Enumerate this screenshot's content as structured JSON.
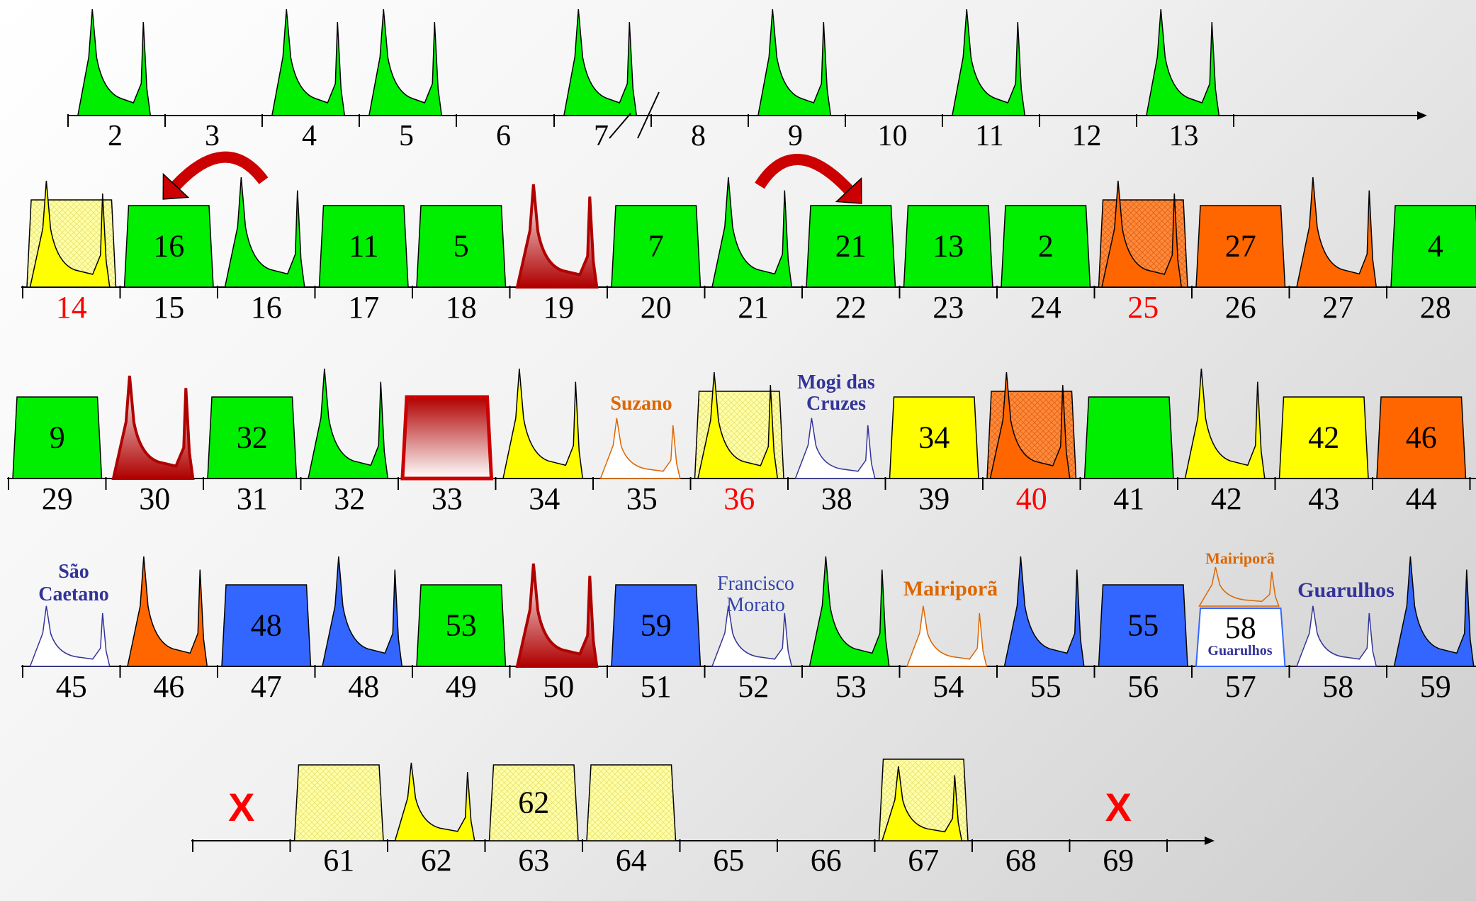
{
  "colors": {
    "green": "#00ee00",
    "yellow": "#ffff00",
    "orange": "#ff6600",
    "blue": "#3366ff",
    "darkred": "#cc0000",
    "crosshatch_yellow": "#ffffaa",
    "label_red": "#ff0000",
    "suzano": "#dd6600",
    "mogi": "#333399"
  },
  "row1": {
    "labels": [
      "2",
      "3",
      "4",
      "5",
      "6",
      "7",
      "8",
      "9",
      "10",
      "11",
      "12",
      "13"
    ],
    "peaks": [
      "green",
      "none",
      "green",
      "green",
      "none",
      "green",
      "none",
      "green",
      "none",
      "green",
      "none",
      "green"
    ],
    "break_mark": "//"
  },
  "row2": {
    "labels": [
      "14",
      "15",
      "16",
      "17",
      "18",
      "19",
      "20",
      "21",
      "22",
      "23",
      "24",
      "25",
      "26",
      "27",
      "28"
    ],
    "label_colors": [
      "red",
      "",
      "",
      "",
      "",
      "",
      "",
      "",
      "",
      "",
      "",
      "red",
      "",
      "",
      ""
    ],
    "cells": [
      {
        "kind": "peak-with-box",
        "color": "yellow"
      },
      {
        "kind": "box",
        "color": "green",
        "text": "16"
      },
      {
        "kind": "peak",
        "color": "green"
      },
      {
        "kind": "box",
        "color": "green",
        "text": "11"
      },
      {
        "kind": "box",
        "color": "green",
        "text": "5"
      },
      {
        "kind": "peak-gradient",
        "color": "darkred"
      },
      {
        "kind": "box",
        "color": "green",
        "text": "7"
      },
      {
        "kind": "peak",
        "color": "green"
      },
      {
        "kind": "box",
        "color": "green",
        "text": "21"
      },
      {
        "kind": "box",
        "color": "green",
        "text": "13"
      },
      {
        "kind": "box",
        "color": "green",
        "text": "2"
      },
      {
        "kind": "peak-with-box",
        "color": "orange"
      },
      {
        "kind": "box",
        "color": "orange",
        "text": "27"
      },
      {
        "kind": "peak",
        "color": "orange"
      },
      {
        "kind": "box",
        "color": "green",
        "text": "4"
      }
    ]
  },
  "row3": {
    "labels": [
      "29",
      "30",
      "31",
      "32",
      "33",
      "34",
      "35",
      "36",
      "38",
      "39",
      "40",
      "41",
      "42",
      "43",
      "44"
    ],
    "label_colors": [
      "",
      "",
      "",
      "",
      "",
      "",
      "",
      "red",
      "",
      "",
      "red",
      "",
      "",
      "",
      ""
    ],
    "cells": [
      {
        "kind": "box",
        "color": "green",
        "text": "9"
      },
      {
        "kind": "peak-gradient",
        "color": "darkred"
      },
      {
        "kind": "box",
        "color": "green",
        "text": "32"
      },
      {
        "kind": "peak",
        "color": "green"
      },
      {
        "kind": "box-gradient",
        "color": "darkred"
      },
      {
        "kind": "peak",
        "color": "yellow"
      },
      {
        "kind": "peak-outline",
        "color": "suzano",
        "caption": "Suzano"
      },
      {
        "kind": "peak-with-box",
        "color": "yellow"
      },
      {
        "kind": "peak-outline",
        "color": "mogi",
        "caption": "Mogi das Cruzes"
      },
      {
        "kind": "box",
        "color": "yellow",
        "text": "34"
      },
      {
        "kind": "peak-with-box",
        "color": "orange"
      },
      {
        "kind": "box",
        "color": "green",
        "text": ""
      },
      {
        "kind": "peak",
        "color": "yellow"
      },
      {
        "kind": "box",
        "color": "yellow",
        "text": "42"
      },
      {
        "kind": "box",
        "color": "orange",
        "text": "46"
      }
    ]
  },
  "row4": {
    "labels": [
      "45",
      "46",
      "47",
      "48",
      "49",
      "50",
      "51",
      "52",
      "53",
      "54",
      "55",
      "56",
      "57",
      "58",
      "59"
    ],
    "cells": [
      {
        "kind": "peak-outline",
        "color": "mogi",
        "caption": "São Caetano"
      },
      {
        "kind": "peak",
        "color": "orange"
      },
      {
        "kind": "box",
        "color": "blue",
        "text": "48"
      },
      {
        "kind": "peak",
        "color": "blue"
      },
      {
        "kind": "box",
        "color": "green",
        "text": "53"
      },
      {
        "kind": "peak-gradient",
        "color": "darkred"
      },
      {
        "kind": "box",
        "color": "blue",
        "text": "59"
      },
      {
        "kind": "peak-outline",
        "color": "mogi",
        "caption": "Francisco Morato"
      },
      {
        "kind": "peak",
        "color": "green"
      },
      {
        "kind": "peak-outline",
        "color": "suzano",
        "caption": "Mairiporã"
      },
      {
        "kind": "peak",
        "color": "blue"
      },
      {
        "kind": "box",
        "color": "blue",
        "text": "55"
      },
      {
        "kind": "double",
        "text": "58",
        "caption_top": "Mairiporã",
        "caption_bottom": "Guarulhos"
      },
      {
        "kind": "peak-outline",
        "color": "mogi",
        "caption": "Guarulhos"
      },
      {
        "kind": "peak",
        "color": "blue"
      }
    ]
  },
  "row5": {
    "labels": [
      "",
      "61",
      "62",
      "63",
      "64",
      "65",
      "66",
      "67",
      "68",
      "69"
    ],
    "cells": [
      {
        "kind": "x-mark",
        "text": "X"
      },
      {
        "kind": "box",
        "color": "crosshatch_yellow",
        "text": ""
      },
      {
        "kind": "peak",
        "color": "yellow"
      },
      {
        "kind": "box",
        "color": "crosshatch_yellow",
        "text": "62"
      },
      {
        "kind": "box",
        "color": "crosshatch_yellow",
        "text": ""
      },
      {
        "kind": "none"
      },
      {
        "kind": "none"
      },
      {
        "kind": "peak-with-box",
        "color": "yellow"
      },
      {
        "kind": "none"
      },
      {
        "kind": "x-mark",
        "text": "X"
      }
    ]
  }
}
